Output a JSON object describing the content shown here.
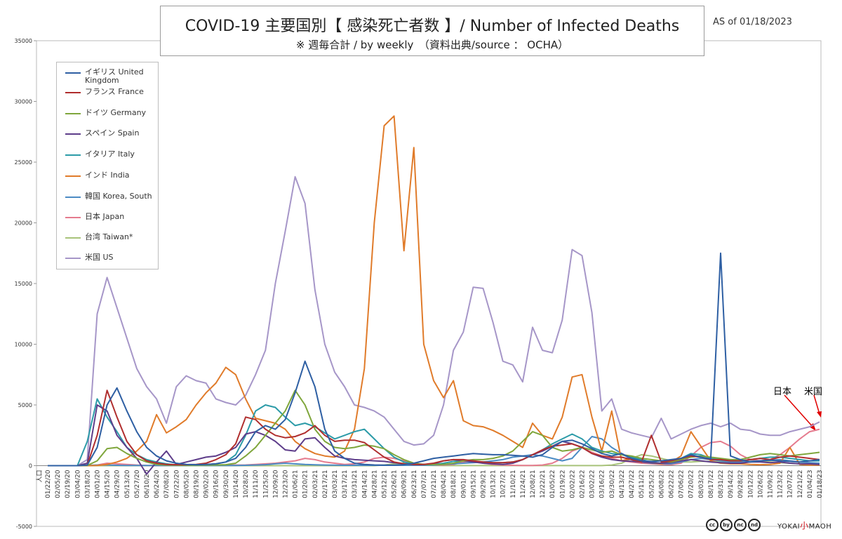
{
  "header": {
    "title": "COVID-19 主要国別【 感染死亡者数 】/ Number of Infected Deaths",
    "subtitle": "※ 週毎合計 / by weekly　（資料出典/source ： OCHA）",
    "as_of": "AS of  01/18/2023"
  },
  "annotations": {
    "japan": "日本",
    "us": "米国"
  },
  "branding": {
    "cc_icons": [
      "cc",
      "by",
      "nc",
      "nd"
    ],
    "logo_text": "YOKAI小MAOH",
    "logo_left": "YOKAI",
    "logo_mid": "小",
    "logo_right": "MAOH"
  },
  "chart_data": {
    "type": "line",
    "title": "COVID-19 主要国別【 感染死亡者数 】/ Number of Infected Deaths",
    "xlabel": "",
    "ylabel": "",
    "ylim": [
      -5000,
      35000
    ],
    "y_ticks": [
      -5000,
      0,
      5000,
      10000,
      15000,
      20000,
      25000,
      30000,
      35000
    ],
    "grid": false,
    "legend_position": "top-left",
    "x_tick_first": "人口",
    "x_tick_labels": [
      "01/22/20",
      "02/05/20",
      "02/19/20",
      "03/04/20",
      "03/18/20",
      "04/01/20",
      "04/15/20",
      "04/29/20",
      "05/13/20",
      "05/27/20",
      "06/10/20",
      "06/24/20",
      "07/08/20",
      "07/22/20",
      "08/05/20",
      "08/19/20",
      "09/02/20",
      "09/16/20",
      "09/30/20",
      "10/14/20",
      "10/28/20",
      "11/11/20",
      "11/25/20",
      "12/09/20",
      "12/23/20",
      "01/06/21",
      "01/20/21",
      "02/03/21",
      "02/17/21",
      "03/03/21",
      "03/17/21",
      "03/31/21",
      "04/14/21",
      "04/28/21",
      "05/12/21",
      "05/26/21",
      "06/09/21",
      "06/23/21",
      "07/07/21",
      "07/21/21",
      "08/04/21",
      "08/18/21",
      "09/01/21",
      "09/15/21",
      "09/29/21",
      "10/13/21",
      "10/27/21",
      "11/10/21",
      "11/24/21",
      "12/08/21",
      "12/22/21",
      "01/05/22",
      "01/19/22",
      "02/02/22",
      "02/16/22",
      "03/02/22",
      "03/16/22",
      "03/30/22",
      "04/13/22",
      "04/27/22",
      "05/11/22",
      "05/25/22",
      "06/08/22",
      "06/22/22",
      "07/06/22",
      "07/20/22",
      "08/03/22",
      "08/17/22",
      "08/31/22",
      "09/14/22",
      "09/28/22",
      "10/12/22",
      "10/26/22",
      "11/09/22",
      "11/23/22",
      "12/07/22",
      "12/21/22",
      "01/04/23",
      "01/18/23"
    ],
    "series": [
      {
        "name": "イギリス United Kingdom",
        "color": "#2E5FA3",
        "values": [
          0,
          0,
          0,
          0,
          50,
          1500,
          5000,
          6400,
          4500,
          2800,
          1500,
          800,
          400,
          200,
          100,
          80,
          100,
          150,
          300,
          600,
          1500,
          2800,
          3300,
          3000,
          3800,
          6000,
          8600,
          6500,
          3000,
          1200,
          600,
          200,
          100,
          60,
          40,
          40,
          80,
          200,
          400,
          600,
          700,
          800,
          900,
          1000,
          950,
          900,
          900,
          850,
          800,
          700,
          900,
          1500,
          2000,
          2100,
          1800,
          1400,
          1000,
          800,
          1000,
          600,
          400,
          350,
          400,
          500,
          600,
          900,
          700,
          550,
          17500,
          800,
          500,
          300,
          400,
          450,
          400,
          350,
          300,
          400,
          500
        ]
      },
      {
        "name": "フランス France",
        "color": "#B02E2E",
        "values": [
          0,
          0,
          0,
          0,
          50,
          2500,
          6200,
          4000,
          2000,
          900,
          400,
          200,
          100,
          80,
          80,
          100,
          200,
          500,
          900,
          1800,
          4000,
          3800,
          3000,
          2500,
          2300,
          2400,
          2700,
          3300,
          2500,
          2000,
          2100,
          2100,
          1900,
          1300,
          700,
          300,
          150,
          100,
          100,
          200,
          400,
          500,
          500,
          400,
          300,
          250,
          250,
          300,
          500,
          900,
          1300,
          1600,
          1700,
          1800,
          1500,
          1000,
          800,
          700,
          700,
          500,
          300,
          2500,
          300,
          400,
          600,
          800,
          700,
          500,
          500,
          400,
          400,
          500,
          600,
          500,
          700,
          800,
          700,
          600,
          500
        ]
      },
      {
        "name": "ドイツ Germany",
        "color": "#7FA63C",
        "values": [
          0,
          0,
          0,
          0,
          20,
          400,
          1400,
          1500,
          1000,
          600,
          300,
          100,
          50,
          40,
          30,
          40,
          50,
          60,
          80,
          200,
          800,
          1500,
          2500,
          3500,
          4500,
          6200,
          5000,
          3000,
          2000,
          1500,
          1400,
          1500,
          1700,
          1600,
          1400,
          900,
          500,
          200,
          100,
          100,
          100,
          200,
          400,
          500,
          500,
          600,
          800,
          1200,
          2000,
          2800,
          2500,
          1500,
          1200,
          1300,
          1500,
          1300,
          1100,
          1200,
          900,
          800,
          600,
          500,
          400,
          300,
          500,
          700,
          800,
          700,
          600,
          500,
          500,
          700,
          900,
          1000,
          900,
          800,
          900,
          1000,
          1100
        ]
      },
      {
        "name": "スペイン Spain",
        "color": "#5E3D8A",
        "values": [
          0,
          0,
          0,
          0,
          200,
          5000,
          4500,
          2500,
          1500,
          600,
          -700,
          300,
          1200,
          100,
          300,
          500,
          700,
          800,
          1100,
          1500,
          2600,
          2800,
          2500,
          2000,
          1300,
          1200,
          2200,
          2300,
          1500,
          800,
          600,
          500,
          450,
          400,
          350,
          250,
          150,
          100,
          100,
          150,
          400,
          500,
          400,
          300,
          200,
          150,
          100,
          200,
          500,
          900,
          1200,
          1600,
          2000,
          1800,
          1500,
          1000,
          700,
          500,
          400,
          350,
          300,
          250,
          200,
          250,
          400,
          500,
          400,
          300,
          250,
          200,
          200,
          300,
          300,
          250,
          300,
          200,
          150,
          150,
          100
        ]
      },
      {
        "name": "イタリア Italy",
        "color": "#2C9BA8",
        "values": [
          0,
          0,
          0,
          0,
          2000,
          5500,
          4000,
          2800,
          1500,
          900,
          500,
          300,
          150,
          60,
          50,
          50,
          80,
          150,
          300,
          900,
          2500,
          4500,
          5000,
          4800,
          4000,
          3300,
          3500,
          3200,
          2700,
          2200,
          2500,
          2800,
          3000,
          2200,
          1400,
          700,
          300,
          150,
          80,
          100,
          200,
          350,
          400,
          350,
          300,
          250,
          250,
          300,
          500,
          900,
          1300,
          1800,
          2200,
          2600,
          2200,
          1500,
          1200,
          1000,
          900,
          700,
          500,
          300,
          200,
          300,
          600,
          1000,
          900,
          600,
          500,
          400,
          400,
          500,
          600,
          700,
          700,
          600,
          500,
          400,
          400
        ]
      },
      {
        "name": "インド India",
        "color": "#E07B2A",
        "values": [
          0,
          0,
          0,
          0,
          0,
          20,
          100,
          300,
          600,
          1200,
          2000,
          4200,
          2700,
          3200,
          3800,
          5000,
          6000,
          6800,
          8100,
          7500,
          5500,
          3900,
          3700,
          3500,
          3000,
          2000,
          1400,
          1000,
          800,
          700,
          1200,
          3000,
          8000,
          20000,
          28000,
          28800,
          17700,
          26200,
          10000,
          7000,
          5600,
          7000,
          3700,
          3300,
          3200,
          2900,
          2500,
          2000,
          1500,
          3500,
          2500,
          2200,
          4000,
          7300,
          7500,
          4000,
          1200,
          4500,
          400,
          600,
          300,
          250,
          150,
          300,
          800,
          2800,
          1600,
          400,
          200,
          150,
          150,
          100,
          80,
          100,
          200,
          1500,
          100,
          50,
          50
        ]
      },
      {
        "name": "韓国 Korea, South",
        "color": "#4C8BC4",
        "values": [
          0,
          0,
          0,
          0,
          20,
          50,
          50,
          30,
          20,
          10,
          10,
          10,
          10,
          10,
          20,
          30,
          20,
          20,
          20,
          20,
          30,
          50,
          80,
          150,
          200,
          150,
          100,
          70,
          50,
          40,
          30,
          30,
          30,
          30,
          30,
          30,
          30,
          30,
          30,
          50,
          100,
          150,
          200,
          250,
          300,
          400,
          500,
          700,
          800,
          900,
          800,
          600,
          400,
          600,
          1500,
          2400,
          2200,
          1500,
          1000,
          500,
          300,
          200,
          150,
          150,
          300,
          500,
          600,
          500,
          400,
          300,
          300,
          350,
          400,
          450,
          500,
          400,
          300,
          250,
          200
        ]
      },
      {
        "name": "日本 Japan",
        "color": "#E57B8E",
        "values": [
          0,
          0,
          0,
          0,
          10,
          50,
          200,
          150,
          100,
          50,
          20,
          10,
          10,
          20,
          50,
          80,
          60,
          50,
          40,
          50,
          60,
          100,
          150,
          200,
          300,
          400,
          600,
          500,
          300,
          200,
          100,
          150,
          300,
          600,
          700,
          600,
          400,
          200,
          100,
          50,
          50,
          100,
          300,
          400,
          200,
          100,
          50,
          30,
          20,
          20,
          50,
          200,
          600,
          1200,
          1500,
          1100,
          800,
          600,
          400,
          300,
          200,
          150,
          100,
          80,
          200,
          800,
          1500,
          1900,
          2000,
          1600,
          900,
          500,
          400,
          500,
          900,
          1500,
          2200,
          2800,
          3000
        ]
      },
      {
        "name": "台湾 Taiwan*",
        "color": "#A8C37A",
        "values": [
          0,
          0,
          0,
          0,
          0,
          0,
          0,
          0,
          0,
          0,
          0,
          0,
          0,
          0,
          0,
          0,
          0,
          0,
          0,
          0,
          0,
          0,
          0,
          0,
          0,
          0,
          0,
          0,
          0,
          0,
          0,
          0,
          0,
          0,
          50,
          150,
          200,
          100,
          30,
          10,
          5,
          5,
          5,
          5,
          5,
          5,
          5,
          5,
          5,
          5,
          5,
          5,
          5,
          5,
          5,
          5,
          5,
          50,
          200,
          600,
          900,
          800,
          600,
          400,
          300,
          300,
          350,
          350,
          300,
          250,
          250,
          300,
          350,
          300,
          250,
          200,
          150,
          150,
          150
        ]
      },
      {
        "name": "米国 US",
        "color": "#A696C8",
        "values": [
          0,
          0,
          0,
          0,
          500,
          12500,
          15500,
          13000,
          10500,
          8000,
          6500,
          5500,
          3500,
          6500,
          7400,
          7000,
          6800,
          5500,
          5200,
          5000,
          5800,
          7500,
          9500,
          15000,
          19300,
          23800,
          21600,
          14500,
          10000,
          7700,
          6500,
          5000,
          4800,
          4500,
          4000,
          3000,
          2000,
          1700,
          1800,
          2500,
          5000,
          9500,
          11000,
          14700,
          14600,
          11800,
          8600,
          8300,
          6900,
          11400,
          9500,
          9300,
          12000,
          17800,
          17300,
          12600,
          4500,
          5500,
          3000,
          2700,
          2500,
          2300,
          3900,
          2200,
          2600,
          3000,
          3300,
          3500,
          3200,
          3500,
          3000,
          2900,
          2600,
          2500,
          2500,
          2800,
          3000,
          3200,
          3600
        ]
      }
    ]
  }
}
